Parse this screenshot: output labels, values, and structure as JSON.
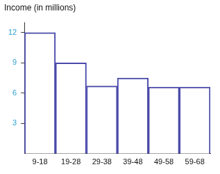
{
  "chart_data": {
    "type": "bar",
    "title": "Income (in millions)",
    "categories": [
      "9-18",
      "19-28",
      "29-38",
      "39-48",
      "49-58",
      "59-68"
    ],
    "values": [
      12,
      9,
      6.7,
      7.5,
      6.6,
      6.6
    ],
    "color": "#4a4aaa",
    "ylim": [
      0,
      13
    ],
    "yticks": [
      3,
      6,
      9,
      12
    ],
    "grid": false
  }
}
